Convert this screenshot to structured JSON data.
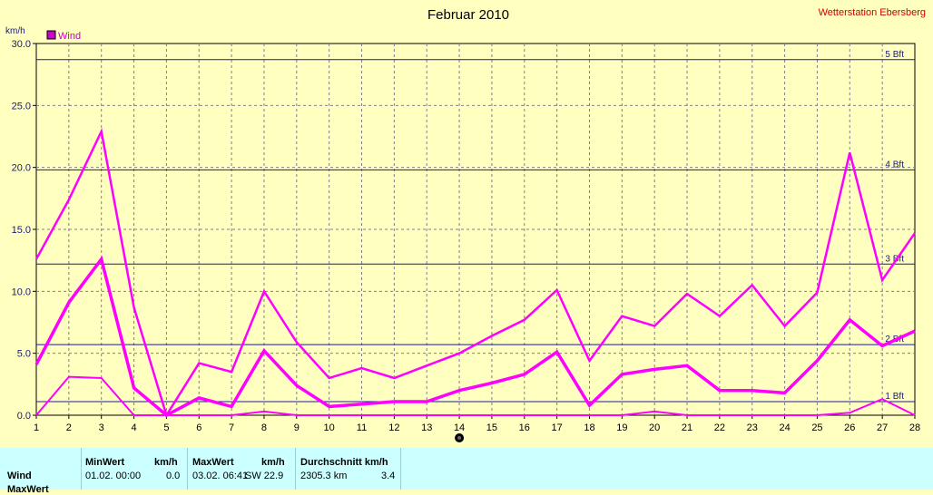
{
  "title": "Februar 2010",
  "station": "Wetterstation Ebersberg",
  "unit": "km/h",
  "colors": {
    "background": "#ffffc0",
    "series": "#ff00ff",
    "grid": "#808080",
    "beaufort": "#1a1a9a",
    "station": "#cc0000",
    "stats_bg": "#ccffff"
  },
  "chart_data": {
    "type": "line",
    "title": "Februar 2010",
    "ylabel": "km/h",
    "ylim": [
      0,
      30
    ],
    "yticks": [
      "0.0",
      "5.0",
      "10.0",
      "15.0",
      "20.0",
      "25.0",
      "30.0"
    ],
    "x": [
      1,
      2,
      3,
      4,
      5,
      6,
      7,
      8,
      9,
      10,
      11,
      12,
      13,
      14,
      15,
      16,
      17,
      18,
      19,
      20,
      21,
      22,
      23,
      24,
      25,
      26,
      27,
      28
    ],
    "legend": [
      "Wind"
    ],
    "legend_position": "top-left",
    "grid": true,
    "series": [
      {
        "name": "Wind",
        "role": "max",
        "values": [
          12.6,
          17.4,
          22.9,
          8.7,
          0.0,
          4.2,
          3.5,
          10.0,
          5.9,
          3.0,
          3.8,
          3.0,
          4.0,
          5.0,
          6.4,
          7.7,
          10.1,
          4.4,
          8.0,
          7.2,
          9.8,
          8.0,
          10.5,
          7.2,
          9.9,
          21.2,
          10.9,
          14.7
        ]
      },
      {
        "name": "Wind",
        "role": "mean",
        "values": [
          4.1,
          9.1,
          12.6,
          2.2,
          0.0,
          1.4,
          0.7,
          5.2,
          2.4,
          0.7,
          0.9,
          1.1,
          1.1,
          2.0,
          2.6,
          3.3,
          5.1,
          0.8,
          3.3,
          3.7,
          4.0,
          2.0,
          2.0,
          1.8,
          4.4,
          7.7,
          5.6,
          6.8
        ]
      },
      {
        "name": "Wind",
        "role": "min",
        "values": [
          0.0,
          3.1,
          3.0,
          0.0,
          0.0,
          0.0,
          0.0,
          0.3,
          0.0,
          0.0,
          0.0,
          0.0,
          0.0,
          0.0,
          0.0,
          0.0,
          0.0,
          0.0,
          0.0,
          0.3,
          0.0,
          0.0,
          0.0,
          0.0,
          0.0,
          0.2,
          1.3,
          0.0
        ]
      }
    ],
    "beaufort_lines": [
      {
        "label": "1 Bft",
        "value": 1.1
      },
      {
        "label": "2 Bft",
        "value": 5.7
      },
      {
        "label": "3 Bft",
        "value": 12.2
      },
      {
        "label": "4 Bft",
        "value": 19.8
      },
      {
        "label": "5 Bft",
        "value": 28.7
      }
    ],
    "current_day_marker": 14
  },
  "stats": {
    "headers": {
      "min": "MinWert",
      "min_unit": "km/h",
      "max": "MaxWert",
      "max_unit": "km/h",
      "avg": "Durchschnitt km/h"
    },
    "row_label": "Wind",
    "min_date": "01.02.  00:00",
    "min_value": "0.0",
    "max_date": "03.02.  06:41",
    "max_dir_value": "SW 22.9",
    "avg_distance": "2305.3 km",
    "avg_value": "3.4",
    "next_row_label": "MaxWert"
  }
}
